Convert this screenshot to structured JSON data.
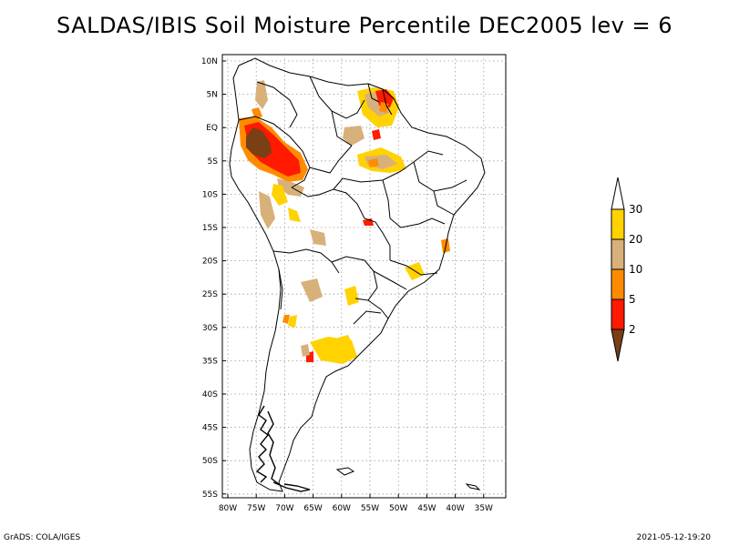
{
  "title": "SALDAS/IBIS Soil Moisture Percentile DEC2005 lev = 6",
  "footer": {
    "left": "GrADS: COLA/IGES",
    "right": "2021-05-12-19:20"
  },
  "map": {
    "lat_labels": [
      "10N",
      "5N",
      "EQ",
      "5S",
      "10S",
      "15S",
      "20S",
      "25S",
      "30S",
      "35S",
      "40S",
      "45S",
      "50S",
      "55S"
    ],
    "lon_labels": [
      "80W",
      "75W",
      "70W",
      "65W",
      "60W",
      "55W",
      "50W",
      "45W",
      "40W",
      "35W"
    ],
    "lat_range": [
      10,
      -56
    ],
    "lon_range": [
      -81,
      -31
    ]
  },
  "colorbar": {
    "labels": [
      "2",
      "5",
      "10",
      "20",
      "30"
    ],
    "colors": [
      "#7a3f14",
      "#ff1a00",
      "#ff8c00",
      "#d8b07a",
      "#ffd200"
    ]
  },
  "colors": {
    "below_2": "#7a3f14",
    "p2_5": "#ff1a00",
    "p5_10": "#ff8c00",
    "p10_20": "#d8b07a",
    "p20_30": "#ffd200"
  }
}
